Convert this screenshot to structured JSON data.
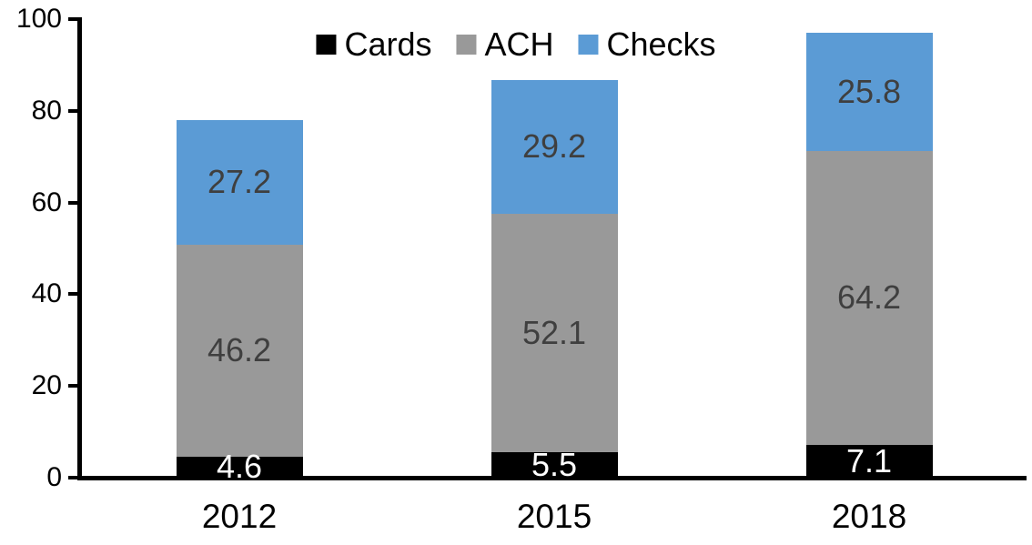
{
  "chart_data": {
    "type": "bar",
    "stacked": true,
    "title": "",
    "xlabel": "",
    "ylabel": "",
    "categories": [
      "2012",
      "2015",
      "2018"
    ],
    "series": [
      {
        "name": "Cards",
        "color": "#000000",
        "label_color": "#ffffff",
        "values": [
          4.6,
          5.5,
          7.1
        ]
      },
      {
        "name": "ACH",
        "color": "#999999",
        "label_color": "#3f3f3f",
        "values": [
          46.2,
          52.1,
          64.2
        ]
      },
      {
        "name": "Checks",
        "color": "#5b9bd5",
        "label_color": "#3f3f3f",
        "values": [
          27.2,
          29.2,
          25.8
        ]
      }
    ],
    "y_ticks": [
      0,
      20,
      40,
      60,
      80,
      100
    ],
    "ylim": [
      0,
      100
    ],
    "grid": false,
    "legend_position": "top-center",
    "axis_color": "#000000"
  }
}
